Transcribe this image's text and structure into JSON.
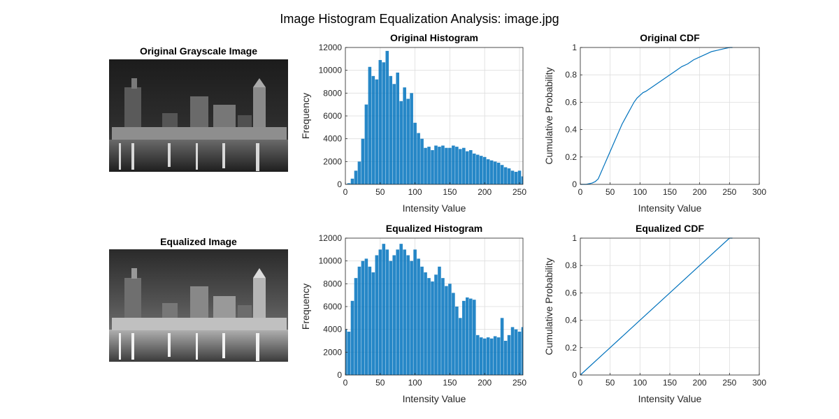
{
  "figure": {
    "title": "Image Histogram Equalization Analysis: image.jpg",
    "colors": {
      "series": "#0072BD",
      "grid": "#dddddd",
      "axis": "#262626"
    }
  },
  "panels": {
    "original_image": {
      "title": "Original Grayscale Image"
    },
    "equalized_image": {
      "title": "Equalized Image"
    }
  },
  "chart_data": [
    {
      "id": "orig_hist",
      "type": "bar",
      "title": "Original Histogram",
      "xlabel": "Intensity Value",
      "ylabel": "Frequency",
      "xlim": [
        0,
        255
      ],
      "ylim": [
        0,
        12000
      ],
      "xticks": [
        0,
        50,
        100,
        150,
        200,
        250
      ],
      "yticks": [
        0,
        2000,
        4000,
        6000,
        8000,
        10000,
        12000
      ],
      "grid": true,
      "x": [
        0,
        5,
        10,
        15,
        20,
        25,
        30,
        35,
        40,
        45,
        50,
        55,
        60,
        65,
        70,
        75,
        80,
        85,
        90,
        95,
        100,
        105,
        110,
        115,
        120,
        125,
        130,
        135,
        140,
        145,
        150,
        155,
        160,
        165,
        170,
        175,
        180,
        185,
        190,
        195,
        200,
        205,
        210,
        215,
        220,
        225,
        230,
        235,
        240,
        245,
        250,
        255
      ],
      "values": [
        0,
        100,
        500,
        1200,
        2000,
        4000,
        7000,
        10300,
        9500,
        9200,
        10900,
        10700,
        11700,
        9500,
        8800,
        9800,
        7300,
        8500,
        7500,
        8000,
        5400,
        4500,
        4000,
        3200,
        3300,
        3000,
        3400,
        3300,
        3400,
        3200,
        3200,
        3400,
        3300,
        3100,
        3200,
        2900,
        3000,
        2700,
        2600,
        2500,
        2400,
        2200,
        2100,
        2000,
        1900,
        1700,
        1500,
        1400,
        1200,
        1100,
        1200,
        700
      ]
    },
    {
      "id": "orig_cdf",
      "type": "line",
      "title": "Original CDF",
      "xlabel": "Intensity Value",
      "ylabel": "Cumulative Probability",
      "xlim": [
        0,
        300
      ],
      "ylim": [
        0,
        1
      ],
      "xticks": [
        0,
        50,
        100,
        150,
        200,
        250,
        300
      ],
      "yticks": [
        0,
        0.2,
        0.4,
        0.6,
        0.8,
        1
      ],
      "grid": true,
      "x": [
        0,
        10,
        20,
        25,
        30,
        35,
        40,
        45,
        50,
        55,
        60,
        65,
        70,
        75,
        80,
        85,
        90,
        95,
        100,
        105,
        110,
        120,
        130,
        140,
        150,
        160,
        170,
        180,
        190,
        200,
        210,
        220,
        230,
        240,
        250,
        255
      ],
      "values": [
        0,
        0,
        0.01,
        0.02,
        0.04,
        0.09,
        0.14,
        0.19,
        0.24,
        0.29,
        0.34,
        0.39,
        0.44,
        0.48,
        0.52,
        0.56,
        0.6,
        0.63,
        0.65,
        0.67,
        0.68,
        0.71,
        0.74,
        0.77,
        0.8,
        0.83,
        0.86,
        0.88,
        0.91,
        0.93,
        0.95,
        0.97,
        0.98,
        0.99,
        1.0,
        1.0
      ]
    },
    {
      "id": "eq_hist",
      "type": "bar",
      "title": "Equalized Histogram",
      "xlabel": "Intensity Value",
      "ylabel": "Frequency",
      "xlim": [
        0,
        255
      ],
      "ylim": [
        0,
        12000
      ],
      "xticks": [
        0,
        50,
        100,
        150,
        200,
        250
      ],
      "yticks": [
        0,
        2000,
        4000,
        6000,
        8000,
        10000,
        12000
      ],
      "grid": true,
      "x": [
        0,
        5,
        10,
        15,
        20,
        25,
        30,
        35,
        40,
        45,
        50,
        55,
        60,
        65,
        70,
        75,
        80,
        85,
        90,
        95,
        100,
        105,
        110,
        115,
        120,
        125,
        130,
        135,
        140,
        145,
        150,
        155,
        160,
        165,
        170,
        175,
        180,
        185,
        190,
        195,
        200,
        205,
        210,
        215,
        220,
        225,
        230,
        235,
        240,
        245,
        250,
        255
      ],
      "values": [
        4000,
        3800,
        6500,
        8500,
        9500,
        10000,
        10200,
        9500,
        9000,
        10500,
        11000,
        11500,
        11000,
        10000,
        10500,
        11000,
        11500,
        11000,
        10500,
        10000,
        11000,
        10200,
        9500,
        9000,
        8500,
        8200,
        8800,
        9500,
        8500,
        7800,
        8000,
        7200,
        6000,
        5000,
        6500,
        6800,
        6700,
        6600,
        3500,
        3300,
        3200,
        3300,
        3200,
        3400,
        3300,
        5000,
        3000,
        3500,
        4200,
        4000,
        3800,
        4200
      ]
    },
    {
      "id": "eq_cdf",
      "type": "line",
      "title": "Equalized CDF",
      "xlabel": "Intensity Value",
      "ylabel": "Cumulative Probability",
      "xlim": [
        0,
        300
      ],
      "ylim": [
        0,
        1
      ],
      "xticks": [
        0,
        50,
        100,
        150,
        200,
        250,
        300
      ],
      "yticks": [
        0,
        0.2,
        0.4,
        0.6,
        0.8,
        1
      ],
      "grid": true,
      "x": [
        0,
        50,
        100,
        150,
        200,
        250,
        255
      ],
      "values": [
        0,
        0.2,
        0.4,
        0.6,
        0.8,
        1.0,
        1.0
      ]
    }
  ]
}
